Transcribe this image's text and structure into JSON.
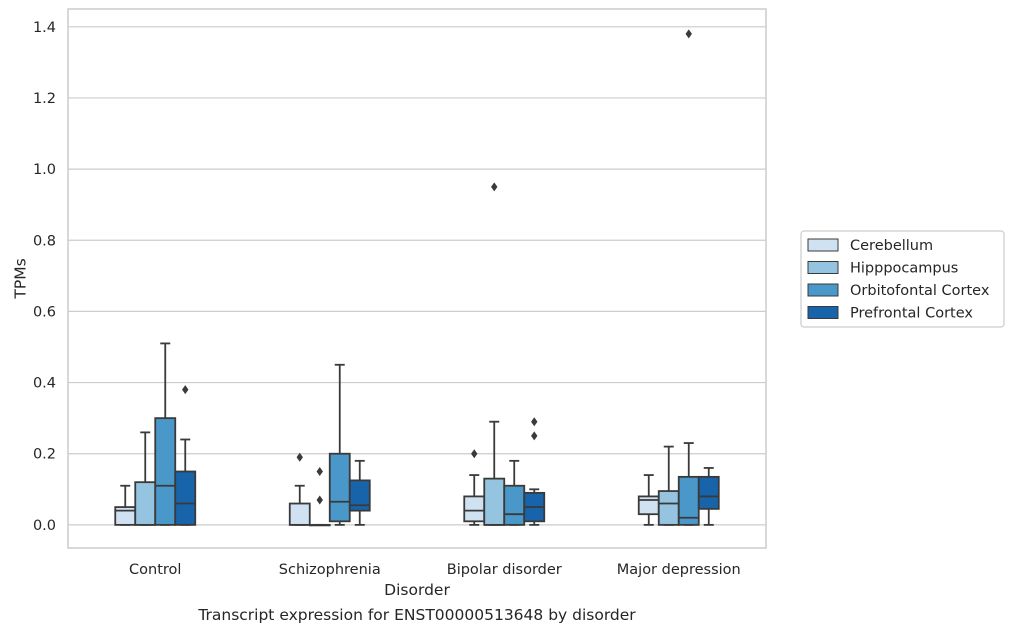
{
  "caption": "Transcript expression for ENST00000513648 by disorder",
  "colors": {
    "Cerebellum": "#d0e1f2",
    "Hipppocampus": "#94c4df",
    "Orbitofontal Cortex": "#4a98c9",
    "Prefrontal Cortex": "#1764ab",
    "edge": "#3a3a3a",
    "grid": "#cccccc"
  },
  "chart_data": {
    "type": "box",
    "title": "",
    "xlabel": "Disorder",
    "ylabel": "TPMs",
    "ylim": [
      -0.065,
      1.45
    ],
    "yticks": [
      "0.0",
      "0.2",
      "0.4",
      "0.6",
      "0.8",
      "1.0",
      "1.2",
      "1.4"
    ],
    "categories": [
      "Control",
      "Schizophrenia",
      "Bipolar disorder",
      "Major depression"
    ],
    "legend_position": "right",
    "grid": true,
    "series": [
      {
        "name": "Cerebellum",
        "boxes": [
          {
            "whislo": 0.0,
            "q1": 0.0,
            "med": 0.04,
            "q3": 0.05,
            "whishi": 0.11,
            "fliers": []
          },
          {
            "whislo": 0.0,
            "q1": 0.0,
            "med": 0.0,
            "q3": 0.06,
            "whishi": 0.11,
            "fliers": [
              0.19
            ]
          },
          {
            "whislo": 0.0,
            "q1": 0.01,
            "med": 0.04,
            "q3": 0.08,
            "whishi": 0.14,
            "fliers": [
              0.2
            ]
          },
          {
            "whislo": 0.0,
            "q1": 0.03,
            "med": 0.07,
            "q3": 0.08,
            "whishi": 0.14,
            "fliers": []
          }
        ]
      },
      {
        "name": "Hipppocampus",
        "boxes": [
          {
            "whislo": 0.0,
            "q1": 0.0,
            "med": 0.0,
            "q3": 0.12,
            "whishi": 0.26,
            "fliers": []
          },
          {
            "whislo": 0.0,
            "q1": 0.0,
            "med": 0.0,
            "q3": 0.0,
            "whishi": 0.0,
            "fliers": [
              0.15,
              0.07
            ]
          },
          {
            "whislo": 0.0,
            "q1": 0.0,
            "med": 0.0,
            "q3": 0.13,
            "whishi": 0.29,
            "fliers": [
              0.95
            ]
          },
          {
            "whislo": 0.0,
            "q1": 0.0,
            "med": 0.06,
            "q3": 0.095,
            "whishi": 0.22,
            "fliers": []
          }
        ]
      },
      {
        "name": "Orbitofontal Cortex",
        "boxes": [
          {
            "whislo": 0.0,
            "q1": 0.0,
            "med": 0.11,
            "q3": 0.3,
            "whishi": 0.51,
            "fliers": []
          },
          {
            "whislo": 0.0,
            "q1": 0.01,
            "med": 0.065,
            "q3": 0.2,
            "whishi": 0.45,
            "fliers": []
          },
          {
            "whislo": 0.0,
            "q1": 0.0,
            "med": 0.03,
            "q3": 0.11,
            "whishi": 0.18,
            "fliers": []
          },
          {
            "whislo": 0.0,
            "q1": 0.0,
            "med": 0.02,
            "q3": 0.135,
            "whishi": 0.23,
            "fliers": [
              1.38
            ]
          }
        ]
      },
      {
        "name": "Prefrontal Cortex",
        "boxes": [
          {
            "whislo": 0.0,
            "q1": 0.0,
            "med": 0.06,
            "q3": 0.15,
            "whishi": 0.24,
            "fliers": [
              0.38
            ]
          },
          {
            "whislo": 0.0,
            "q1": 0.04,
            "med": 0.055,
            "q3": 0.125,
            "whishi": 0.18,
            "fliers": []
          },
          {
            "whislo": 0.0,
            "q1": 0.01,
            "med": 0.05,
            "q3": 0.09,
            "whishi": 0.1,
            "fliers": [
              0.29,
              0.25
            ]
          },
          {
            "whislo": 0.0,
            "q1": 0.045,
            "med": 0.08,
            "q3": 0.135,
            "whishi": 0.16,
            "fliers": []
          }
        ]
      }
    ]
  }
}
